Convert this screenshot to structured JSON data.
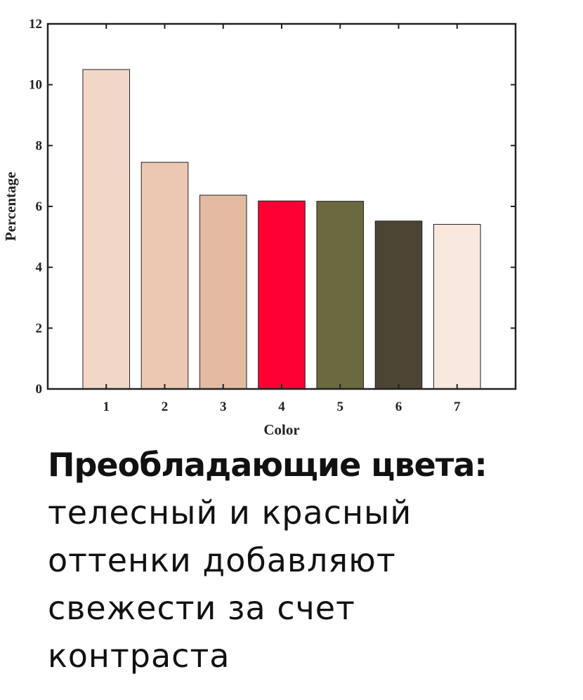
{
  "chart_data": {
    "type": "bar",
    "categories": [
      "1",
      "2",
      "3",
      "4",
      "5",
      "6",
      "7"
    ],
    "values": [
      10.5,
      7.45,
      6.37,
      6.18,
      6.17,
      5.52,
      5.41
    ],
    "colors": [
      "#f2d6c8",
      "#ecc8b3",
      "#e3bba2",
      "#ff0033",
      "#6b693f",
      "#4d4533",
      "#f8e8dd"
    ],
    "xlabel": "Color",
    "ylabel": "Percentage",
    "ylim": [
      0,
      12
    ],
    "yticks": [
      0,
      2,
      4,
      6,
      8,
      10,
      12
    ],
    "xlim": [
      0,
      8
    ],
    "grid": false,
    "legend": "none"
  },
  "caption": {
    "heading": "Преобладающие цвета:",
    "lines": [
      "телесный и красный",
      "оттенки добавляют",
      "свежести за счет",
      "контраста"
    ]
  }
}
